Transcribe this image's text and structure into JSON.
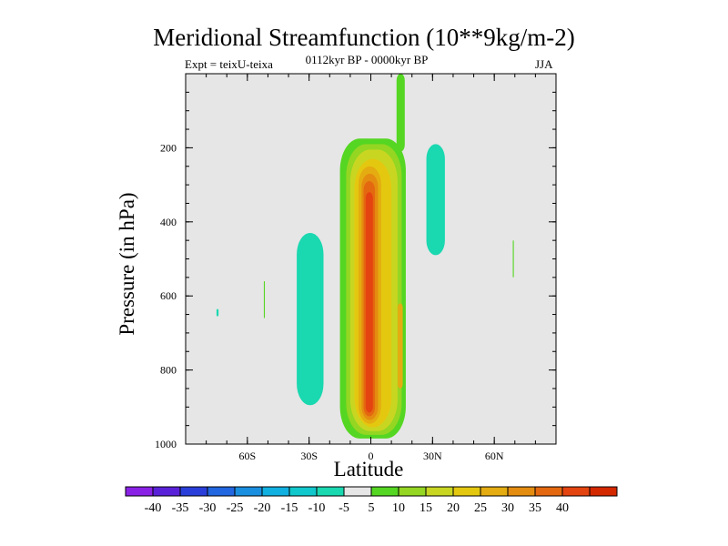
{
  "header": {
    "title": "Meridional Streamfunction (10**9kg/m-2)",
    "expt": "Expt = teixU-teixa",
    "subtitle": "0112kyr BP - 0000kyr BP",
    "season": "JJA"
  },
  "colors": {
    "background": "#e6e6e6",
    "frame": "#000000",
    "palette": [
      "#8a22e6",
      "#5a22d8",
      "#2a3fd9",
      "#2266e0",
      "#1a8fe0",
      "#10b0e0",
      "#10c8cc",
      "#1ad8b0",
      "#e6e6e6",
      "#55d622",
      "#94d622",
      "#c8d622",
      "#e4c810",
      "#e4ac10",
      "#e48c10",
      "#e46810",
      "#e44410",
      "#d42800"
    ]
  },
  "chart_data": {
    "type": "heatmap",
    "title": "Meridional Streamfunction (10**9kg/m-2)",
    "xlabel": "Latitude",
    "ylabel": "Pressure (in hPa)",
    "xlim": [
      -90,
      90
    ],
    "ylim": [
      1000,
      0
    ],
    "xticks": [
      {
        "value": -60,
        "label": "60S"
      },
      {
        "value": -30,
        "label": "30S"
      },
      {
        "value": 0,
        "label": "0"
      },
      {
        "value": 30,
        "label": "30N"
      },
      {
        "value": 60,
        "label": "60N"
      }
    ],
    "yticks": [
      {
        "value": 200,
        "label": "200"
      },
      {
        "value": 400,
        "label": "400"
      },
      {
        "value": 600,
        "label": "600"
      },
      {
        "value": 800,
        "label": "800"
      },
      {
        "value": 1000,
        "label": "1000"
      }
    ],
    "colorbar": {
      "labels": [
        "-40",
        "-35",
        "-30",
        "-25",
        "-20",
        "-15",
        "-10",
        "-5",
        "5",
        "10",
        "15",
        "20",
        "25",
        "30",
        "35",
        "40"
      ]
    },
    "regions": [
      {
        "name": "cell-outer-positive",
        "level": 5,
        "color_index": 9,
        "lat": [
          -15,
          17
        ],
        "p": [
          175,
          985
        ]
      },
      {
        "name": "upper-jet-positive",
        "level": 5,
        "color_index": 9,
        "lat": [
          12.5,
          16.5
        ],
        "p": [
          0,
          210
        ]
      },
      {
        "name": "cell-10",
        "level": 10,
        "color_index": 10,
        "lat": [
          -12,
          15
        ],
        "p": [
          190,
          975
        ]
      },
      {
        "name": "cell-15",
        "level": 15,
        "color_index": 11,
        "lat": [
          -10,
          13
        ],
        "p": [
          205,
          965
        ]
      },
      {
        "name": "cell-20",
        "level": 20,
        "color_index": 12,
        "lat": [
          -8,
          10
        ],
        "p": [
          230,
          955
        ]
      },
      {
        "name": "cell-25",
        "level": 25,
        "color_index": 13,
        "lat": [
          -6,
          5
        ],
        "p": [
          250,
          945
        ]
      },
      {
        "name": "cell-30",
        "level": 30,
        "color_index": 14,
        "lat": [
          -4.5,
          3.5
        ],
        "p": [
          270,
          935
        ]
      },
      {
        "name": "cell-35",
        "level": 35,
        "color_index": 15,
        "lat": [
          -3.5,
          2
        ],
        "p": [
          290,
          925
        ]
      },
      {
        "name": "cell-40",
        "level": 40,
        "color_index": 16,
        "lat": [
          -2.5,
          1
        ],
        "p": [
          320,
          915
        ]
      },
      {
        "name": "secondary-20N",
        "level": 20,
        "color_index": 13,
        "lat": [
          13,
          15.5
        ],
        "p": [
          620,
          850
        ]
      },
      {
        "name": "southern-negative",
        "level": -5,
        "color_index": 7,
        "lat": [
          -36,
          -23
        ],
        "p": [
          430,
          895
        ]
      },
      {
        "name": "northern-negative",
        "level": -5,
        "color_index": 7,
        "lat": [
          27,
          36
        ],
        "p": [
          190,
          490
        ]
      },
      {
        "name": "speck-negative-75S",
        "level": -5,
        "color_index": 7,
        "lat": [
          -75,
          -74
        ],
        "p": [
          635,
          655
        ]
      },
      {
        "name": "speck-positive-50S",
        "level": 5,
        "color_index": 9,
        "lat": [
          -52,
          -51.5
        ],
        "p": [
          560,
          660
        ]
      },
      {
        "name": "speck-positive-70N",
        "level": 5,
        "color_index": 9,
        "lat": [
          69,
          69.5
        ],
        "p": [
          450,
          550
        ]
      }
    ]
  }
}
